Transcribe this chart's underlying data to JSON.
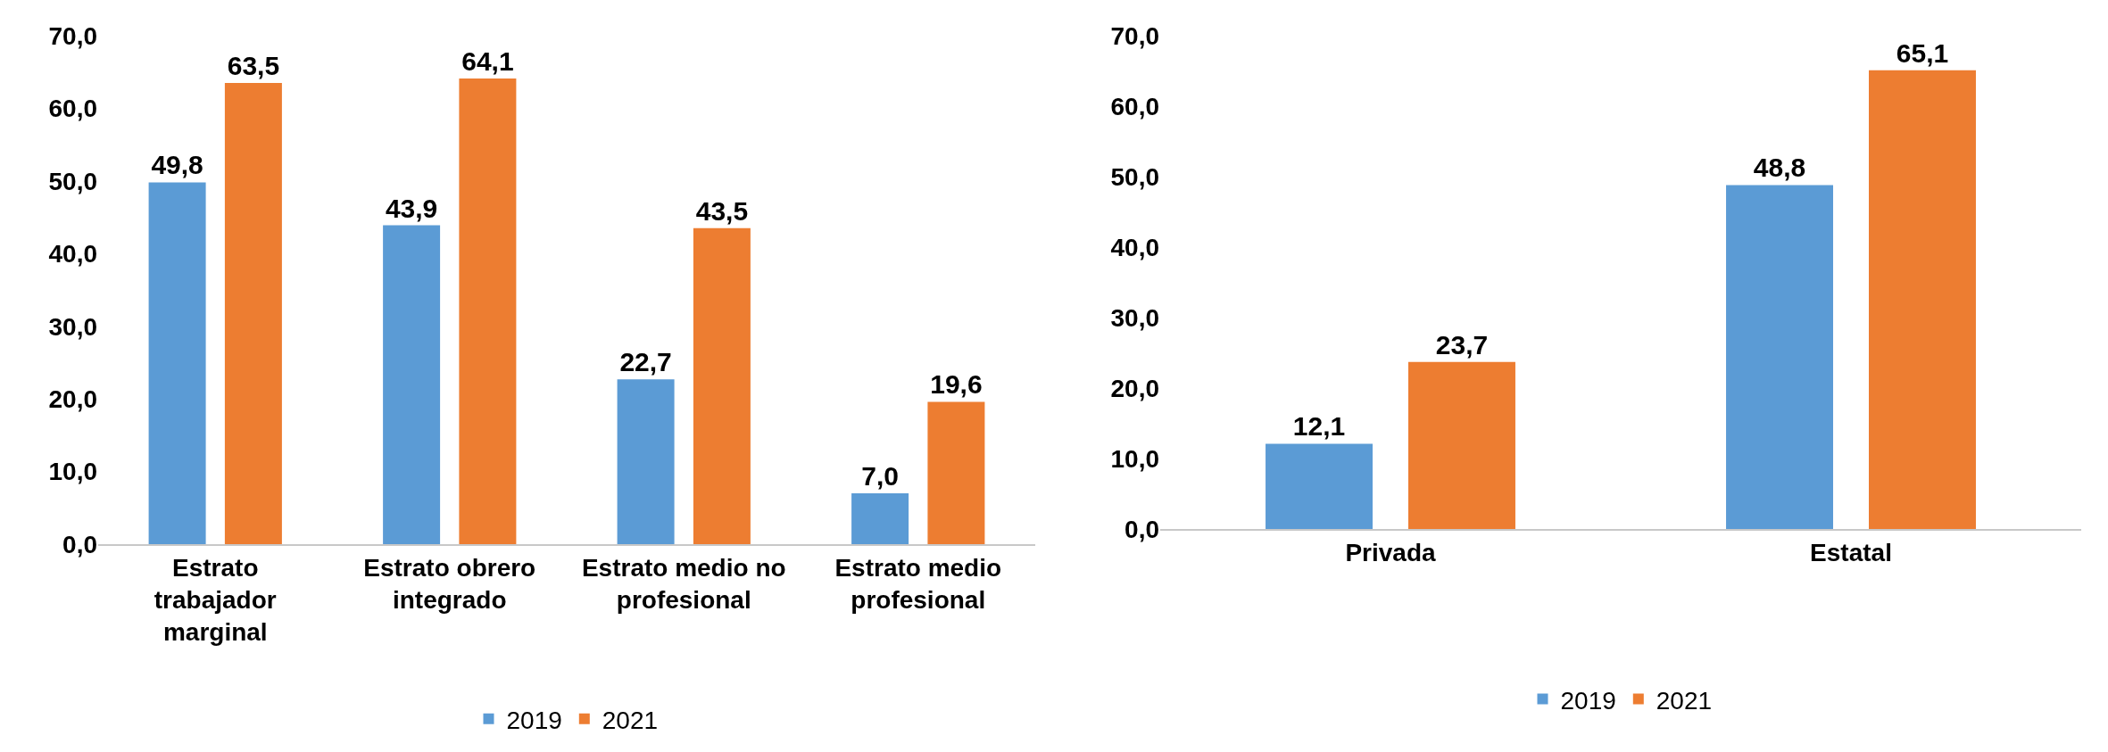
{
  "chart_data": [
    {
      "type": "bar",
      "categories": [
        "Estrato trabajador marginal",
        "Estrato obrero integrado",
        "Estrato medio no profesional",
        "Estrato medio profesional"
      ],
      "series": [
        {
          "name": "2019",
          "color": "#5b9bd5",
          "values": [
            49.8,
            43.9,
            22.7,
            7.0
          ],
          "value_labels": [
            "49,8",
            "43,9",
            "22,7",
            "7,0"
          ]
        },
        {
          "name": "2021",
          "color": "#ed7d31",
          "values": [
            63.5,
            64.1,
            43.5,
            19.6
          ],
          "value_labels": [
            "63,5",
            "64,1",
            "43,5",
            "19,6"
          ]
        }
      ],
      "ylim": [
        0,
        70
      ],
      "yticks": [
        {
          "value": 0,
          "label": "0,0"
        },
        {
          "value": 10,
          "label": "10,0"
        },
        {
          "value": 20,
          "label": "20,0"
        },
        {
          "value": 30,
          "label": "30,0"
        },
        {
          "value": 40,
          "label": "40,0"
        },
        {
          "value": 50,
          "label": "50,0"
        },
        {
          "value": 60,
          "label": "60,0"
        },
        {
          "value": 70,
          "label": "70,0"
        }
      ],
      "grid": false,
      "legend": "bottom"
    },
    {
      "type": "bar",
      "categories": [
        "Privada",
        "Estatal"
      ],
      "series": [
        {
          "name": "2019",
          "color": "#5b9bd5",
          "values": [
            12.1,
            48.8
          ],
          "value_labels": [
            "12,1",
            "48,8"
          ]
        },
        {
          "name": "2021",
          "color": "#ed7d31",
          "values": [
            23.7,
            65.1
          ],
          "value_labels": [
            "23,7",
            "65,1"
          ]
        }
      ],
      "ylim": [
        0,
        70
      ],
      "yticks": [
        {
          "value": 0,
          "label": "0,0"
        },
        {
          "value": 10,
          "label": "10,0"
        },
        {
          "value": 20,
          "label": "20,0"
        },
        {
          "value": 30,
          "label": "30,0"
        },
        {
          "value": 40,
          "label": "40,0"
        },
        {
          "value": 50,
          "label": "50,0"
        },
        {
          "value": 60,
          "label": "60,0"
        },
        {
          "value": 70,
          "label": "70,0"
        }
      ],
      "grid": false,
      "legend": "bottom"
    }
  ]
}
